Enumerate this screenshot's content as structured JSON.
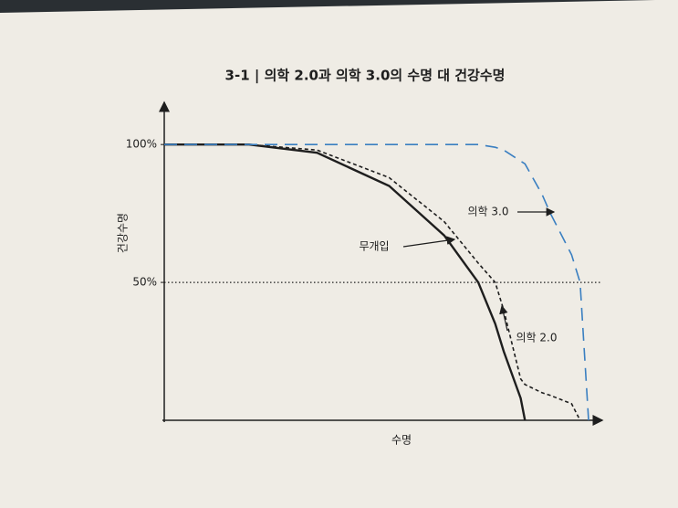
{
  "chart_data": {
    "type": "line",
    "title": "3-1 | 의학 2.0과 의학 3.0의 수명 대 건강수명",
    "x_label": "수명",
    "y_label": "건강수명",
    "x": [
      0,
      20,
      36,
      53,
      66,
      74,
      78,
      80,
      84,
      85,
      89,
      91,
      96,
      98,
      100
    ],
    "xlim": [
      0,
      100
    ],
    "ylim": [
      0,
      110
    ],
    "yticks": [
      {
        "value": 50,
        "label": "50%"
      },
      {
        "value": 100,
        "label": "100%"
      }
    ],
    "reference_line": 50,
    "series": [
      {
        "name": "무개입",
        "color": "#1e1e1e",
        "style": "solid",
        "values": [
          100,
          100,
          97,
          85,
          67,
          50,
          35,
          25,
          8,
          0,
          null,
          null,
          null,
          null,
          null
        ]
      },
      {
        "name": "의학 2.0",
        "color": "#1e1e1e",
        "style": "dashed",
        "values": [
          100,
          100,
          98,
          88,
          72,
          57,
          50,
          40,
          15,
          13,
          10,
          9,
          6,
          0,
          null
        ]
      },
      {
        "name": "의학 3.0",
        "color": "#3a7fc1",
        "style": "longdash",
        "values": [
          100,
          100,
          100,
          100,
          100,
          100,
          99,
          98,
          94,
          93,
          82,
          75,
          60,
          50,
          0
        ]
      }
    ]
  }
}
